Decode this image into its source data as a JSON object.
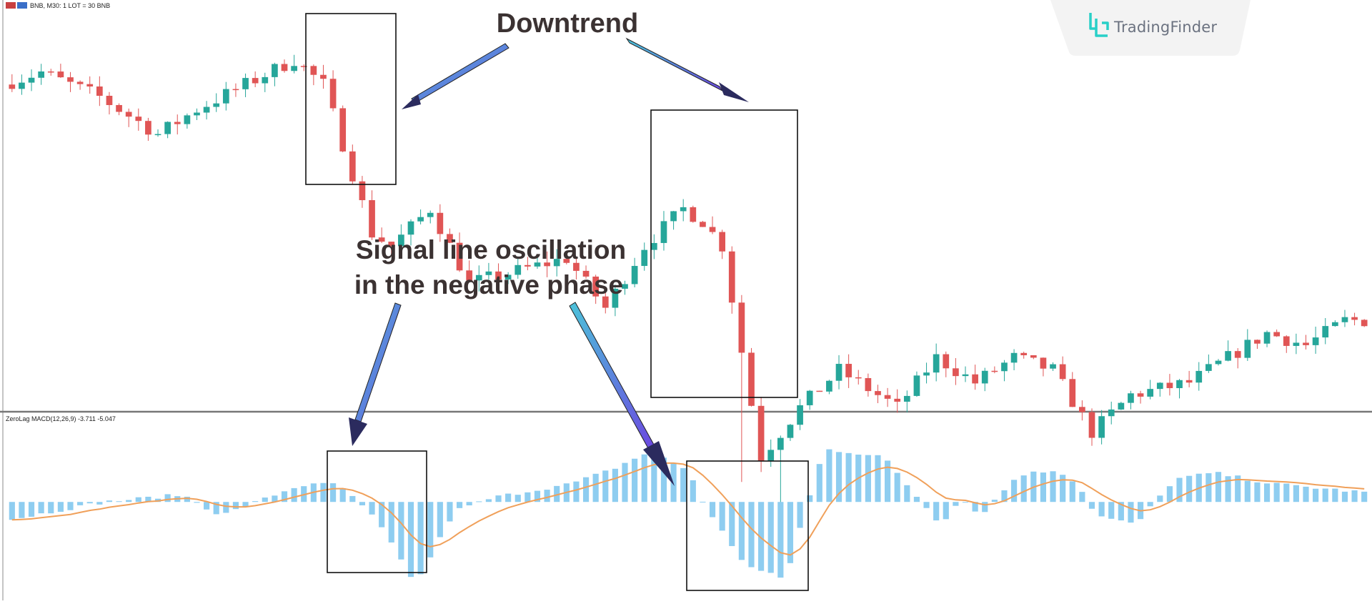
{
  "header": {
    "symbol_info": "BNB, M30:  1 LOT = 30 BNB"
  },
  "indicator": {
    "label": "ZeroLag MACD(12,26,9) -3.711 -5.047"
  },
  "brand": {
    "name": "TradingFinder"
  },
  "annotations": {
    "downtrend": "Downtrend",
    "signal_line_1": "Signal line oscillation",
    "signal_line_2": "in the negative phase"
  },
  "colors": {
    "bull_candle": "#26a69a",
    "bear_candle": "#e05555",
    "histogram": "#8ecdf0",
    "signal_line": "#f0a05a",
    "frame": "#111111",
    "arrow_start": "#4cc3d9",
    "arrow_end": "#6b48e0"
  },
  "icons": [
    "chart-toolbar-icon",
    "tradingfinder-logo-icon"
  ],
  "chart_data": [
    {
      "type": "candlestick",
      "panel": "price",
      "title": "BNB, M30",
      "ylim": [
        70,
        102
      ],
      "price_path": [
        [
          0,
          96
        ],
        [
          4,
          97
        ],
        [
          10,
          95
        ],
        [
          16,
          92
        ],
        [
          20,
          94
        ],
        [
          30,
          98
        ],
        [
          33,
          96
        ],
        [
          38,
          84
        ],
        [
          40,
          83
        ],
        [
          44,
          86
        ],
        [
          48,
          80
        ],
        [
          58,
          82
        ],
        [
          62,
          78
        ],
        [
          66,
          83
        ],
        [
          70,
          86
        ],
        [
          72,
          85
        ],
        [
          74,
          83
        ],
        [
          78,
          66
        ],
        [
          82,
          70
        ],
        [
          86,
          73
        ],
        [
          92,
          70
        ],
        [
          96,
          74
        ],
        [
          100,
          72
        ],
        [
          104,
          74
        ],
        [
          108,
          73
        ],
        [
          112,
          68
        ],
        [
          116,
          71
        ],
        [
          122,
          72
        ],
        [
          126,
          74
        ],
        [
          130,
          76
        ],
        [
          134,
          75
        ],
        [
          138,
          77
        ],
        [
          140,
          77
        ]
      ],
      "down_spikes": [
        {
          "at": 79,
          "low": 61
        },
        {
          "at": 75,
          "low": 64
        }
      ]
    },
    {
      "type": "bar",
      "panel": "oscillator",
      "title": "ZeroLag MACD(12,26,9)",
      "ylim": [
        -10,
        8
      ],
      "macd_path": [
        [
          0,
          -2
        ],
        [
          10,
          0
        ],
        [
          18,
          0.8
        ],
        [
          22,
          -1.5
        ],
        [
          30,
          1.8
        ],
        [
          34,
          2.0
        ],
        [
          38,
          -2
        ],
        [
          42,
          -9
        ],
        [
          46,
          -1
        ],
        [
          50,
          0.5
        ],
        [
          58,
          2.0
        ],
        [
          62,
          3.5
        ],
        [
          66,
          5.5
        ],
        [
          70,
          3.5
        ],
        [
          72,
          -1
        ],
        [
          76,
          -7
        ],
        [
          80,
          -8.5
        ],
        [
          82,
          -1
        ],
        [
          84,
          5.8
        ],
        [
          90,
          5.0
        ],
        [
          94,
          0
        ],
        [
          96,
          -2.5
        ],
        [
          98,
          0.5
        ],
        [
          100,
          -1.5
        ],
        [
          104,
          3.0
        ],
        [
          108,
          3.5
        ],
        [
          110,
          2.0
        ],
        [
          112,
          -1.5
        ],
        [
          116,
          -2.5
        ],
        [
          120,
          2.5
        ],
        [
          124,
          3.2
        ],
        [
          130,
          2.0
        ],
        [
          140,
          1.0
        ]
      ],
      "signal_smoothing": 0.22
    }
  ]
}
